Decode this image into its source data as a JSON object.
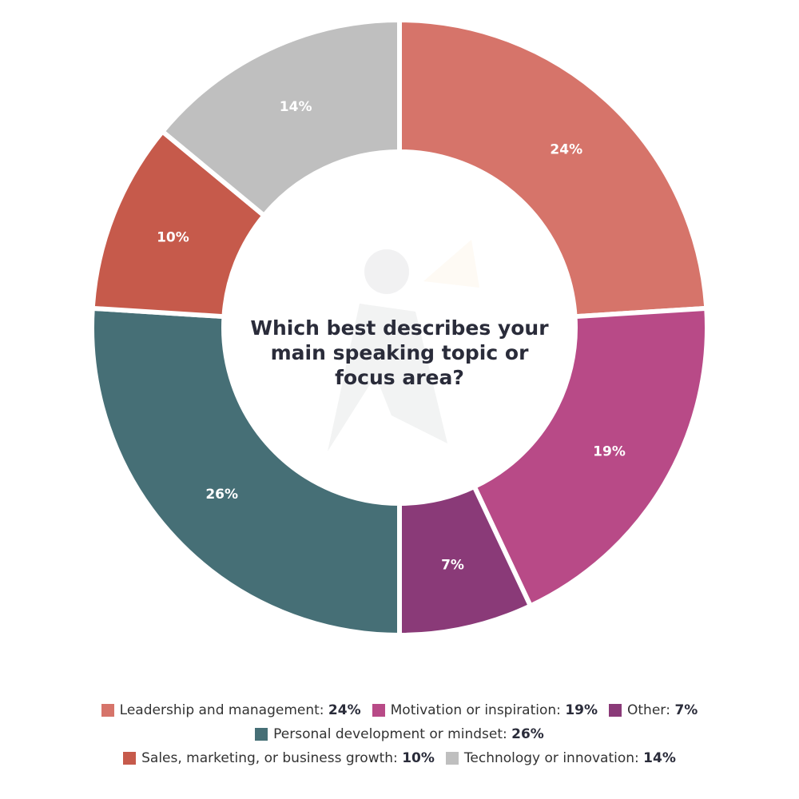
{
  "chart_data": {
    "type": "pie",
    "variant": "donut",
    "title": "Which best describes your main speaking topic or focus area?",
    "categories": [
      "Leadership and management",
      "Motivation or inspiration",
      "Other",
      "Personal development or mindset",
      "Sales, marketing, or business growth",
      "Technology or innovation"
    ],
    "values": [
      24,
      19,
      7,
      26,
      10,
      14
    ],
    "labels": [
      "24%",
      "19%",
      "7%",
      "26%",
      "10%",
      "14%"
    ],
    "colors": [
      "#d6746a",
      "#b84a87",
      "#8a3a78",
      "#466f76",
      "#c65a4b",
      "#bfbfbf"
    ],
    "unit": "%",
    "legend_position": "bottom",
    "legend_separator": ":",
    "start": "top",
    "direction": "clockwise"
  }
}
